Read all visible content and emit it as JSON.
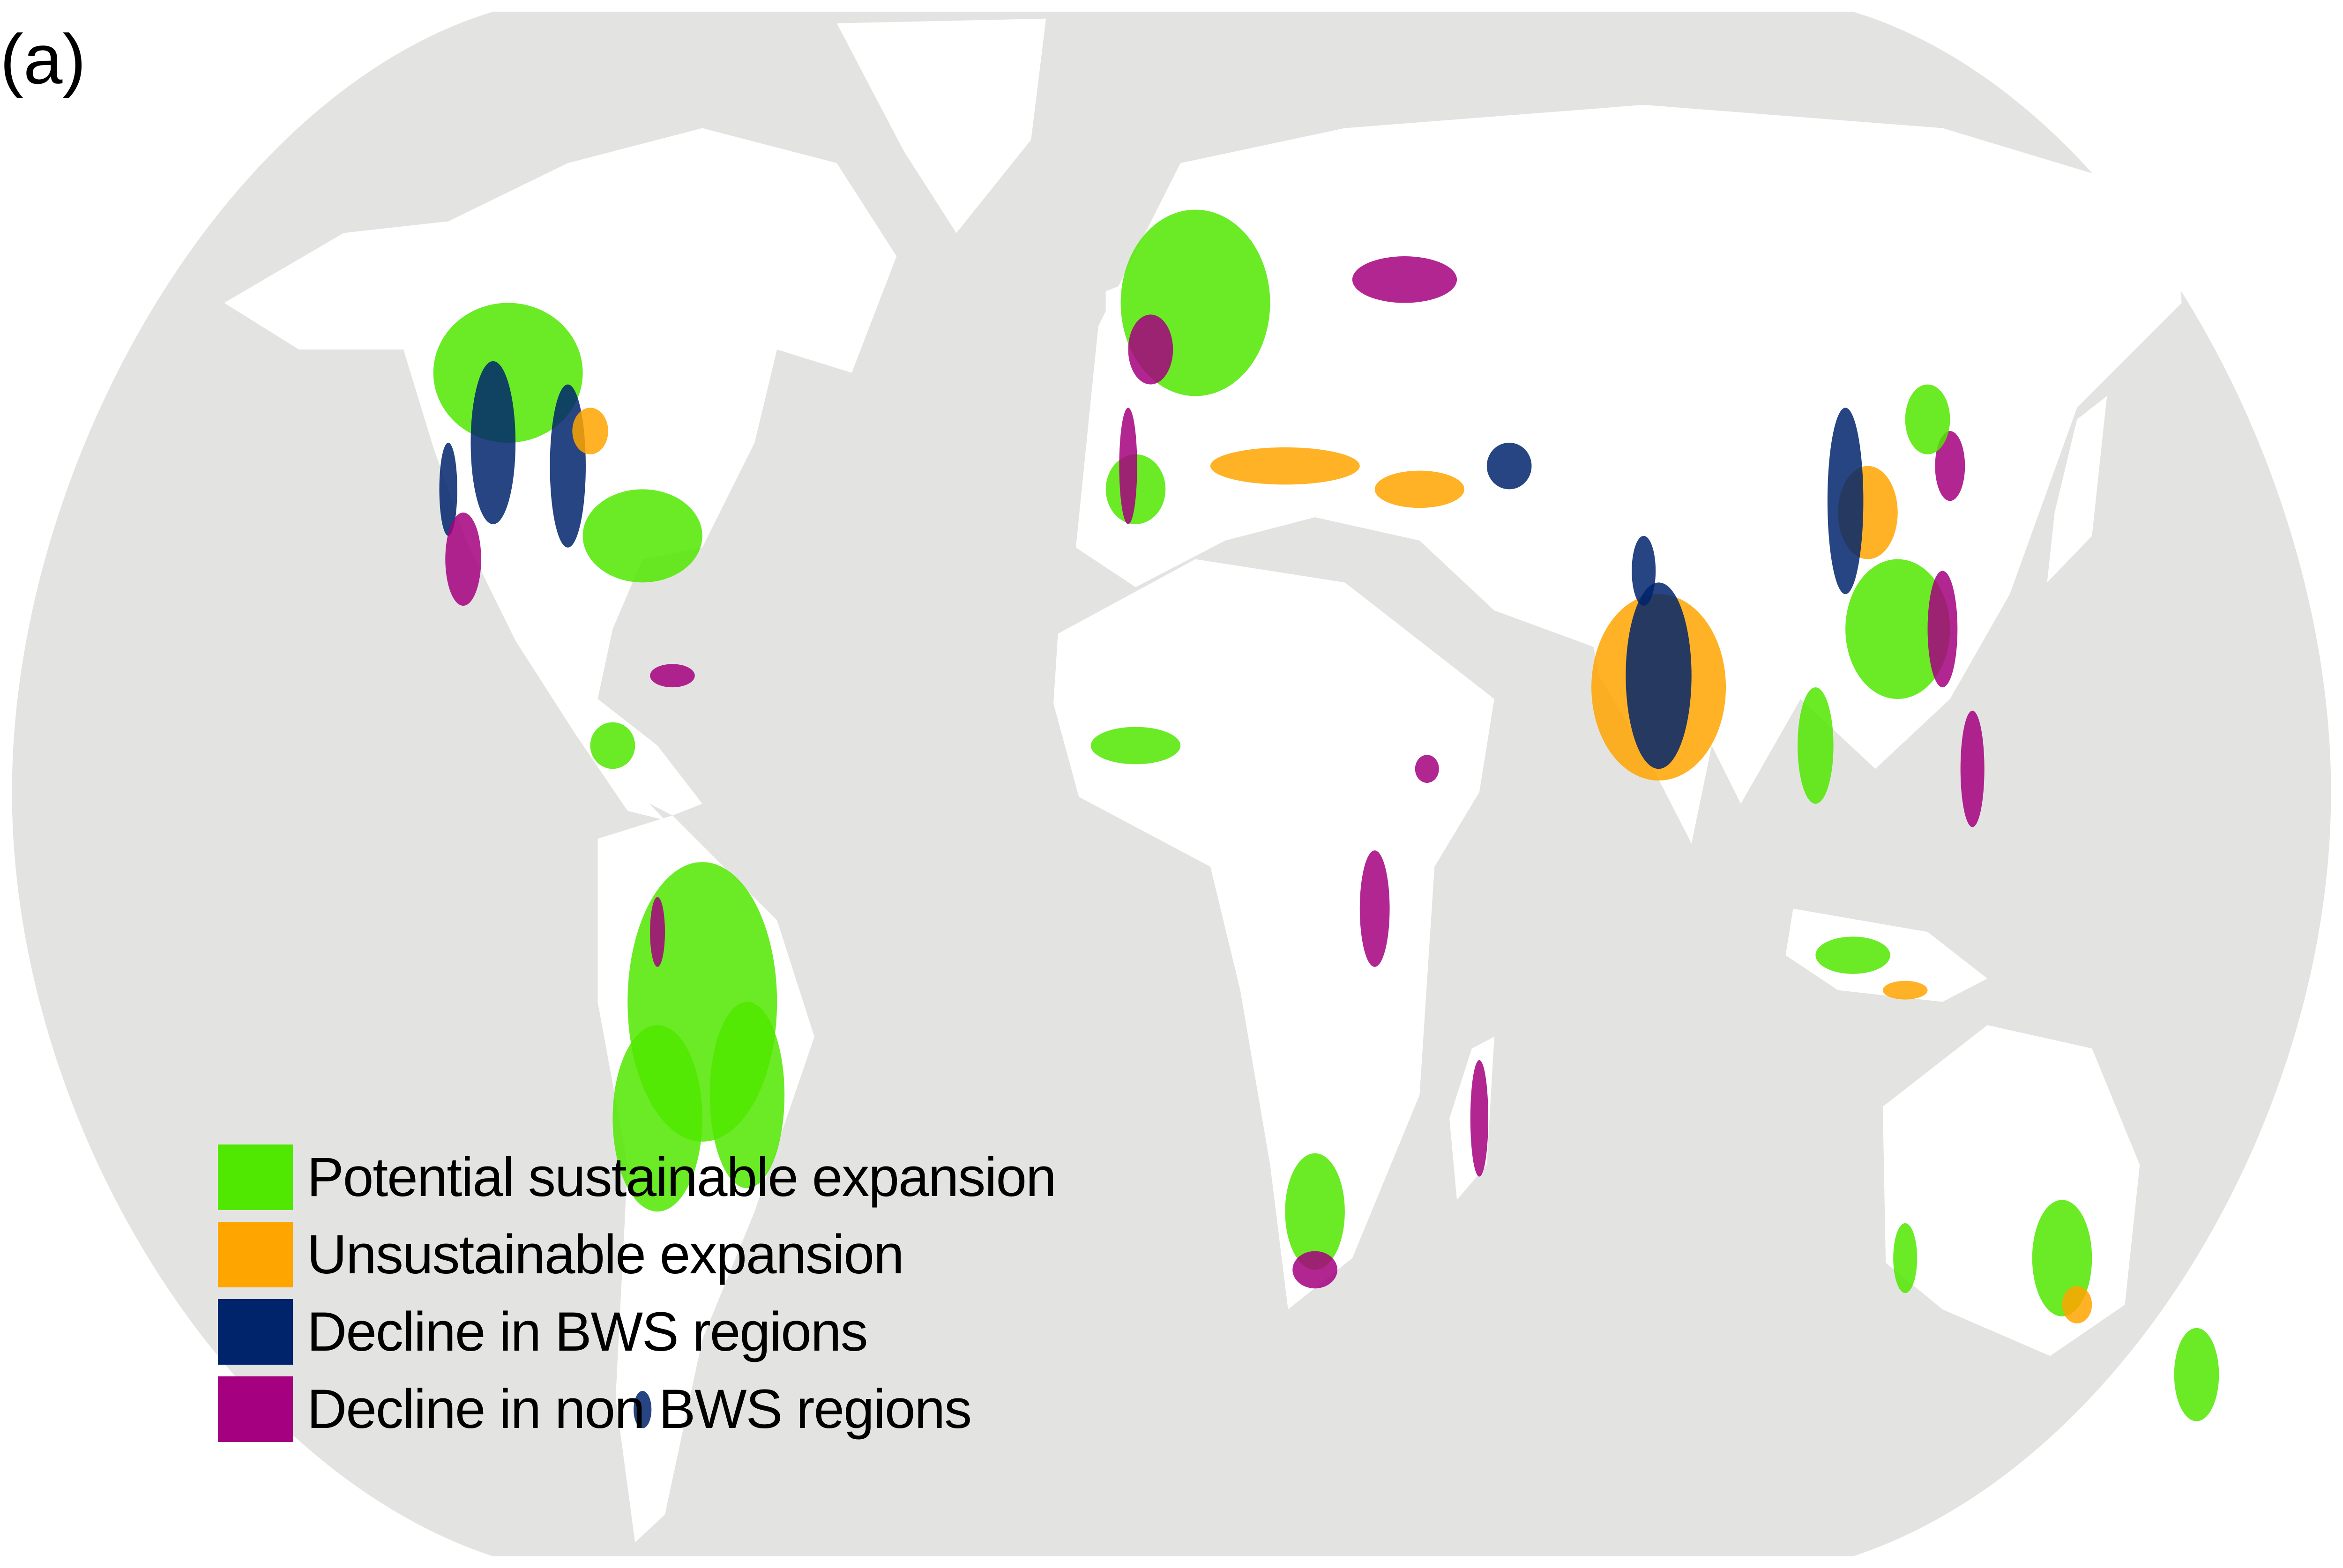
{
  "panel_label": "(a)",
  "colors": {
    "ocean": "#e3e4e2",
    "land": "#ffffff",
    "potential_sustainable_expansion": "#50e800",
    "unsustainable_expansion": "#ffa500",
    "decline_bws": "#00246c",
    "decline_non_bws": "#a5007f"
  },
  "legend": [
    {
      "label": "Potential sustainable expansion",
      "color": "#50e800"
    },
    {
      "label": "Unsustainable expansion",
      "color": "#ffa500"
    },
    {
      "label": "Decline in BWS regions",
      "color": "#00246c"
    },
    {
      "label": "Decline in non BWS regions",
      "color": "#a5007f"
    }
  ]
}
